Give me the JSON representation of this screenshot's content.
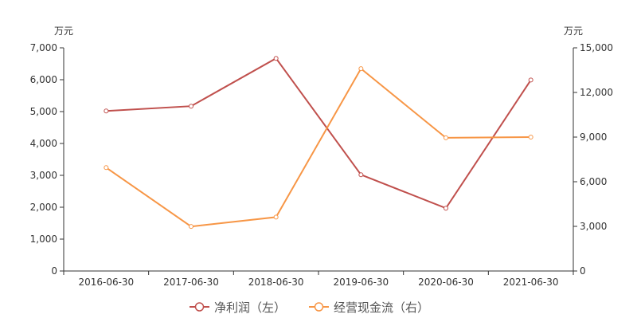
{
  "chart_data": {
    "type": "line",
    "categories": [
      "2016-06-30",
      "2017-06-30",
      "2018-06-30",
      "2019-06-30",
      "2020-06-30",
      "2021-06-30"
    ],
    "y_left": {
      "unit": "万元",
      "ylim": [
        0,
        7000
      ],
      "ticks": [
        0,
        1000,
        2000,
        3000,
        4000,
        5000,
        6000,
        7000
      ],
      "tick_labels": [
        "0",
        "1,000",
        "2,000",
        "3,000",
        "4,000",
        "5,000",
        "6,000",
        "7,000"
      ]
    },
    "y_right": {
      "unit": "万元",
      "ylim": [
        0,
        15000
      ],
      "ticks": [
        0,
        3000,
        6000,
        9000,
        12000,
        15000
      ],
      "tick_labels": [
        "0",
        "3,000",
        "6,000",
        "9,000",
        "12,000",
        "15,000"
      ]
    },
    "series": [
      {
        "name": "净利润（左）",
        "axis": "left",
        "color": "#c0504d",
        "values": [
          5020,
          5170,
          6670,
          3020,
          1970,
          5990
        ]
      },
      {
        "name": "经营现金流（右）",
        "axis": "right",
        "color": "#f79646",
        "values": [
          6950,
          2990,
          3620,
          13600,
          8950,
          9000
        ]
      }
    ],
    "grid": false,
    "legend_position": "bottom-center"
  }
}
